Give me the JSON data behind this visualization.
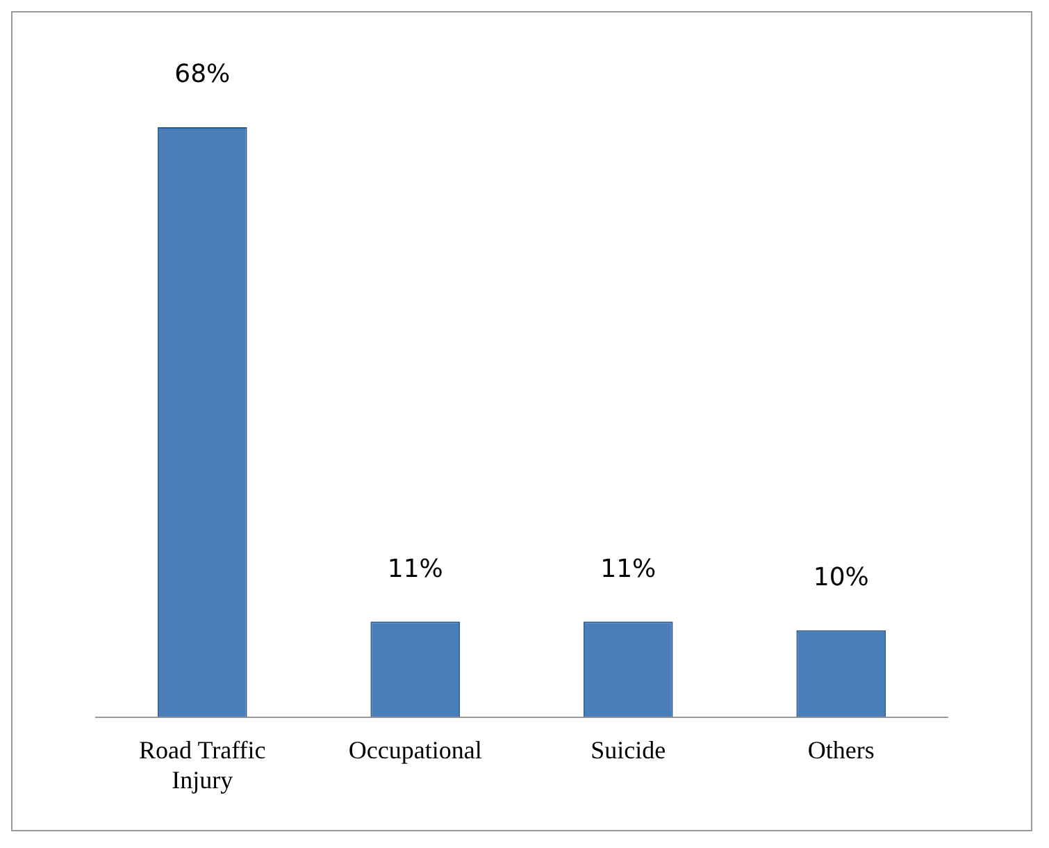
{
  "chart_data": {
    "type": "bar",
    "categories": [
      "Road Traffic Injury",
      "Occupational",
      "Suicide",
      "Others"
    ],
    "values": [
      68,
      11,
      11,
      10
    ],
    "color": "#4a7ebb",
    "value_labels": [
      "68%",
      "11%",
      "11%",
      "10%"
    ],
    "grid": false,
    "legend": false
  }
}
